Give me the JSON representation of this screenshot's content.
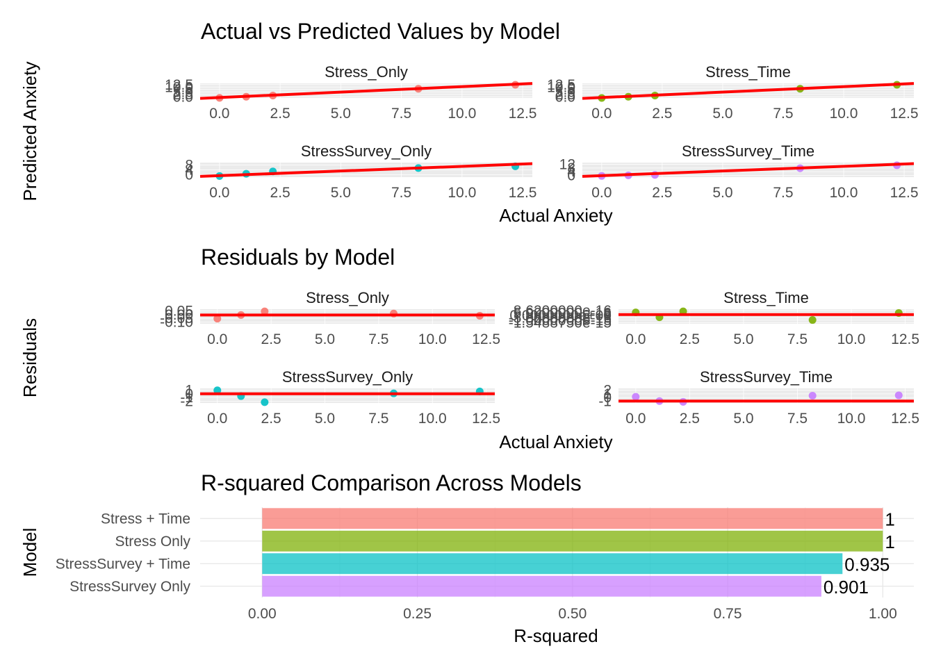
{
  "colors": {
    "Stress_Only": "#F8766D",
    "Stress_Time": "#7CAE00",
    "StressSurvey_Only": "#00BFC4",
    "StressSurvey_Time": "#C77CFF",
    "fit_line": "#FF0000",
    "panel_bg": "#EBEBEB"
  },
  "chart_data": [
    {
      "type": "scatter",
      "title": "Actual vs Predicted Values by Model",
      "xlabel": "Actual Anxiety",
      "ylabel": "Predicted Anxiety",
      "xlim": [
        -0.8,
        12.9
      ],
      "x_ticks": [
        "0.0",
        "2.5",
        "5.0",
        "7.5",
        "10.0",
        "12.5"
      ],
      "panels": [
        {
          "name": "Stress_Only",
          "y_ticks": [
            "0.0",
            "2.5",
            "5.0",
            "7.5",
            "10.0",
            "12.5"
          ],
          "ylim": [
            0,
            13
          ],
          "line": {
            "x0": -0.8,
            "y0": -0.4,
            "x1": 12.9,
            "y1": 12.9
          },
          "points": [
            {
              "x": 0,
              "y": 0.1
            },
            {
              "x": 1.1,
              "y": 1.1
            },
            {
              "x": 2.2,
              "y": 2.2
            },
            {
              "x": 8.2,
              "y": 8.2
            },
            {
              "x": 12.2,
              "y": 12.2
            }
          ]
        },
        {
          "name": "Stress_Time",
          "y_ticks": [
            "0.0",
            "2.5",
            "5.0",
            "7.5",
            "10.0",
            "12.5"
          ],
          "ylim": [
            0,
            13
          ],
          "line": {
            "x0": -0.8,
            "y0": -0.4,
            "x1": 12.9,
            "y1": 12.9
          },
          "points": [
            {
              "x": 0,
              "y": 0
            },
            {
              "x": 1.1,
              "y": 1.1
            },
            {
              "x": 2.2,
              "y": 2.2
            },
            {
              "x": 8.2,
              "y": 8.2
            },
            {
              "x": 12.2,
              "y": 12.2
            }
          ]
        },
        {
          "name": "StressSurvey_Only",
          "y_ticks": [
            "0",
            "4",
            "8"
          ],
          "ylim": [
            -1,
            14
          ],
          "line": {
            "x0": -0.8,
            "y0": -0.2,
            "x1": 12.9,
            "y1": 12.9
          },
          "points": [
            {
              "x": 0,
              "y": 0.2
            },
            {
              "x": 1.1,
              "y": 2.5
            },
            {
              "x": 2.2,
              "y": 4.9
            },
            {
              "x": 8.2,
              "y": 8.4
            },
            {
              "x": 12.2,
              "y": 10.2
            }
          ]
        },
        {
          "name": "StressSurvey_Time",
          "y_ticks": [
            "0",
            "4",
            "8",
            "12"
          ],
          "ylim": [
            -1,
            14
          ],
          "line": {
            "x0": -0.8,
            "y0": -0.2,
            "x1": 12.9,
            "y1": 12.9
          },
          "points": [
            {
              "x": 0,
              "y": 0.3
            },
            {
              "x": 1.1,
              "y": 0.9
            },
            {
              "x": 2.2,
              "y": 1.3
            },
            {
              "x": 8.2,
              "y": 8.2
            },
            {
              "x": 12.2,
              "y": 11.2
            }
          ]
        }
      ]
    },
    {
      "type": "scatter",
      "title": "Residuals by Model",
      "xlabel": "Actual Anxiety",
      "ylabel": "Residuals",
      "xlim": [
        -0.8,
        12.9
      ],
      "x_ticks": [
        "0.0",
        "2.5",
        "5.0",
        "7.5",
        "10.0",
        "12.5"
      ],
      "panels": [
        {
          "name": "Stress_Only",
          "y_ticks": [
            "-0.10",
            "-0.05",
            "0.00",
            "0.05"
          ],
          "ylim": [
            -0.12,
            0.08
          ],
          "zero": 0,
          "points": [
            {
              "x": 0,
              "y": -0.05
            },
            {
              "x": 1.1,
              "y": 0.0
            },
            {
              "x": 2.2,
              "y": 0.05
            },
            {
              "x": 8.2,
              "y": 0.02
            },
            {
              "x": 12.2,
              "y": -0.01
            }
          ]
        },
        {
          "name": "Stress_Time",
          "y_ticks": [
            "-1.5488750e-15",
            "-1.0000000e-15",
            "-5.0000000e-16",
            "0.0000000e+00",
            "5.0000000e-16",
            "8.6200000e-16"
          ],
          "ylim": [
            -1.7e-15,
            1e-15
          ],
          "zero": 0,
          "points": [
            {
              "x": 0,
              "y": 4e-16
            },
            {
              "x": 1.1,
              "y": -5e-16
            },
            {
              "x": 2.2,
              "y": 6e-16
            },
            {
              "x": 8.2,
              "y": -1e-15
            },
            {
              "x": 12.2,
              "y": 3e-16
            }
          ]
        },
        {
          "name": "StressSurvey_Only",
          "y_ticks": [
            "-2",
            "-1",
            "0",
            "1"
          ],
          "ylim": [
            -2.4,
            1.4
          ],
          "zero": 0,
          "points": [
            {
              "x": 0,
              "y": 0.9
            },
            {
              "x": 1.1,
              "y": -0.6
            },
            {
              "x": 2.2,
              "y": -2.2
            },
            {
              "x": 8.2,
              "y": 0.1
            },
            {
              "x": 12.2,
              "y": 0.6
            }
          ]
        },
        {
          "name": "StressSurvey_Time",
          "y_ticks": [
            "-1",
            "0",
            "1",
            "2"
          ],
          "ylim": [
            -1.4,
            2.4
          ],
          "zero": -0.9,
          "points": [
            {
              "x": 0,
              "y": 0.2
            },
            {
              "x": 1.1,
              "y": -0.9
            },
            {
              "x": 2.2,
              "y": -1.1
            },
            {
              "x": 8.2,
              "y": 0.5
            },
            {
              "x": 12.2,
              "y": 0.6
            }
          ]
        }
      ]
    },
    {
      "type": "bar",
      "orientation": "horizontal",
      "title": "R-squared Comparison Across Models",
      "xlabel": "R-squared",
      "ylabel": "Model",
      "xlim": [
        -0.1,
        1.05
      ],
      "x_ticks": [
        "0.00",
        "0.25",
        "0.50",
        "0.75",
        "1.00"
      ],
      "categories": [
        "Stress + Time",
        "Stress Only",
        "StressSurvey + Time",
        "StressSurvey Only"
      ],
      "values": [
        1,
        1,
        0.935,
        0.901
      ],
      "labels": [
        "1",
        "1",
        "0.935",
        "0.901"
      ]
    }
  ]
}
